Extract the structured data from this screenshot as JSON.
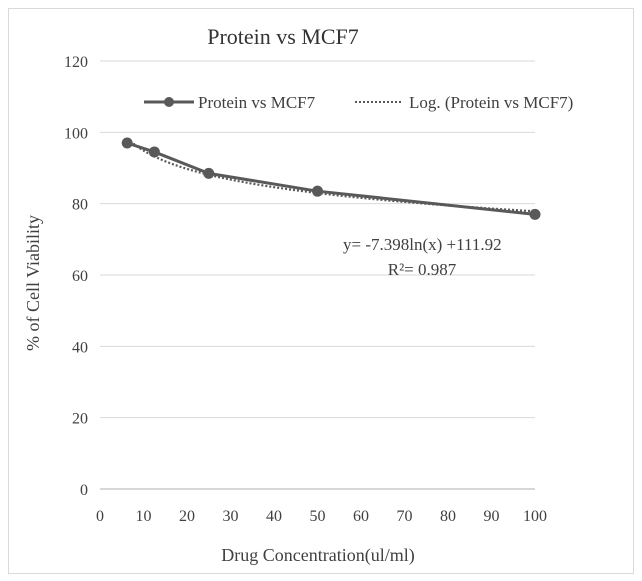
{
  "chart_data": {
    "type": "line",
    "title": "Protein vs MCF7",
    "xlabel": "Drug Concentration(ul/ml)",
    "ylabel": "% of Cell Viability",
    "xlim": [
      0,
      100
    ],
    "ylim": [
      0,
      120
    ],
    "x_ticks": [
      0,
      10,
      20,
      30,
      40,
      50,
      60,
      70,
      80,
      90,
      100
    ],
    "y_ticks": [
      0,
      20,
      40,
      60,
      80,
      100,
      120
    ],
    "x_tick_labels": [
      "0",
      "10",
      "20",
      "30",
      "40",
      "50",
      "60",
      "70",
      "80",
      "90",
      "100"
    ],
    "y_tick_labels": [
      "0",
      "20",
      "40",
      "60",
      "80",
      "100",
      "120"
    ],
    "grid": "horizontal",
    "legend_position": "top",
    "series": [
      {
        "name": "Protein vs MCF7",
        "style": "solid-with-markers",
        "color": "#595959",
        "x": [
          6.25,
          12.5,
          25,
          50,
          100
        ],
        "y": [
          97,
          94.5,
          88.5,
          83.5,
          77
        ]
      }
    ],
    "trendline": {
      "name": "Log. (Protein vs MCF7)",
      "type": "logarithmic",
      "style": "dotted",
      "color": "#595959",
      "a": -7.398,
      "b": 111.92
    },
    "annotations": {
      "equation": "y= -7.398ln(x) +111.92",
      "r_squared": "R²= 0.987"
    },
    "colors": {
      "gridline": "#d9d9d9",
      "axis": "#bfbfbf",
      "text": "#404040"
    }
  }
}
